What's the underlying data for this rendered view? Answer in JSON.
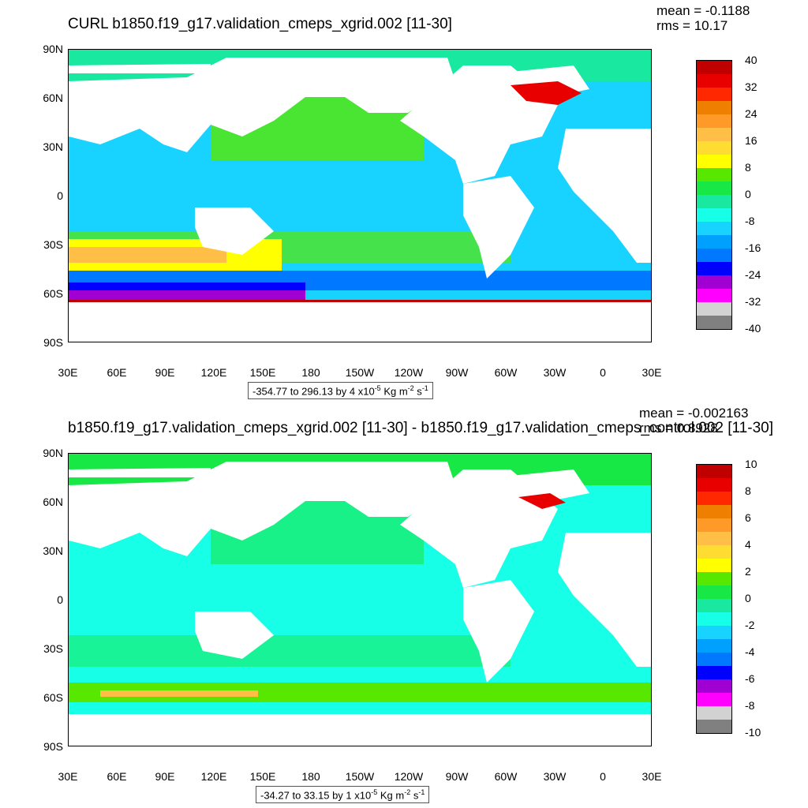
{
  "panels": [
    {
      "title": "CURL b1850.f19_g17.validation_cmeps_xgrid.002 [11-30]",
      "mean": "mean = -0.1188",
      "rms": "rms = 10.17",
      "lat_ticks": [
        "90N",
        "60N",
        "30N",
        "0",
        "30S",
        "60S",
        "90S"
      ],
      "lon_ticks": [
        "30E",
        "60E",
        "90E",
        "120E",
        "150E",
        "180",
        "150W",
        "120W",
        "90W",
        "60W",
        "30W",
        "0",
        "30E"
      ],
      "colorbar_labels": [
        "40",
        "32",
        "24",
        "16",
        "8",
        "0",
        "-8",
        "-16",
        "-24",
        "-32",
        "-40"
      ],
      "range_text": "-354.77 to 296.13 by 4 x10",
      "range_exp": "-5",
      "range_unit_a": " Kg m",
      "range_unit_exp_a": "-2",
      "range_unit_b": " s",
      "range_unit_exp_b": "-1"
    },
    {
      "title": "b1850.f19_g17.validation_cmeps_xgrid.002 [11-30] - b1850.f19_g17.validation_cmeps_control.002 [11-30]",
      "mean": "mean = -0.002163",
      "rms": "rms = 0.8928",
      "lat_ticks": [
        "90N",
        "60N",
        "30N",
        "0",
        "30S",
        "60S",
        "90S"
      ],
      "lon_ticks": [
        "30E",
        "60E",
        "90E",
        "120E",
        "150E",
        "180",
        "150W",
        "120W",
        "90W",
        "60W",
        "30W",
        "0",
        "30E"
      ],
      "colorbar_labels": [
        "10",
        "8",
        "6",
        "4",
        "2",
        "0",
        "-2",
        "-4",
        "-6",
        "-8",
        "-10"
      ],
      "range_text": "-34.27 to 33.15 by 1 x10",
      "range_exp": "-5",
      "range_unit_a": " Kg m",
      "range_unit_exp_a": "-2",
      "range_unit_b": " s",
      "range_unit_exp_b": "-1"
    }
  ],
  "colorbar_colors": [
    "#c00000",
    "#e80000",
    "#ff2800",
    "#ee7f00",
    "#ff9a28",
    "#ffbe46",
    "#ffdc32",
    "#ffff00",
    "#58e800",
    "#18e846",
    "#18e8a0",
    "#18ffe8",
    "#18d2ff",
    "#00a0ff",
    "#0078ff",
    "#0000ff",
    "#a000d2",
    "#ff00ff",
    "#d2d2d2",
    "#808080"
  ],
  "map_colors": {
    "land": "#ffffff",
    "ocean_base": "#18d2ff",
    "ocean_light": "#18ffe8",
    "green": "#18e846"
  }
}
